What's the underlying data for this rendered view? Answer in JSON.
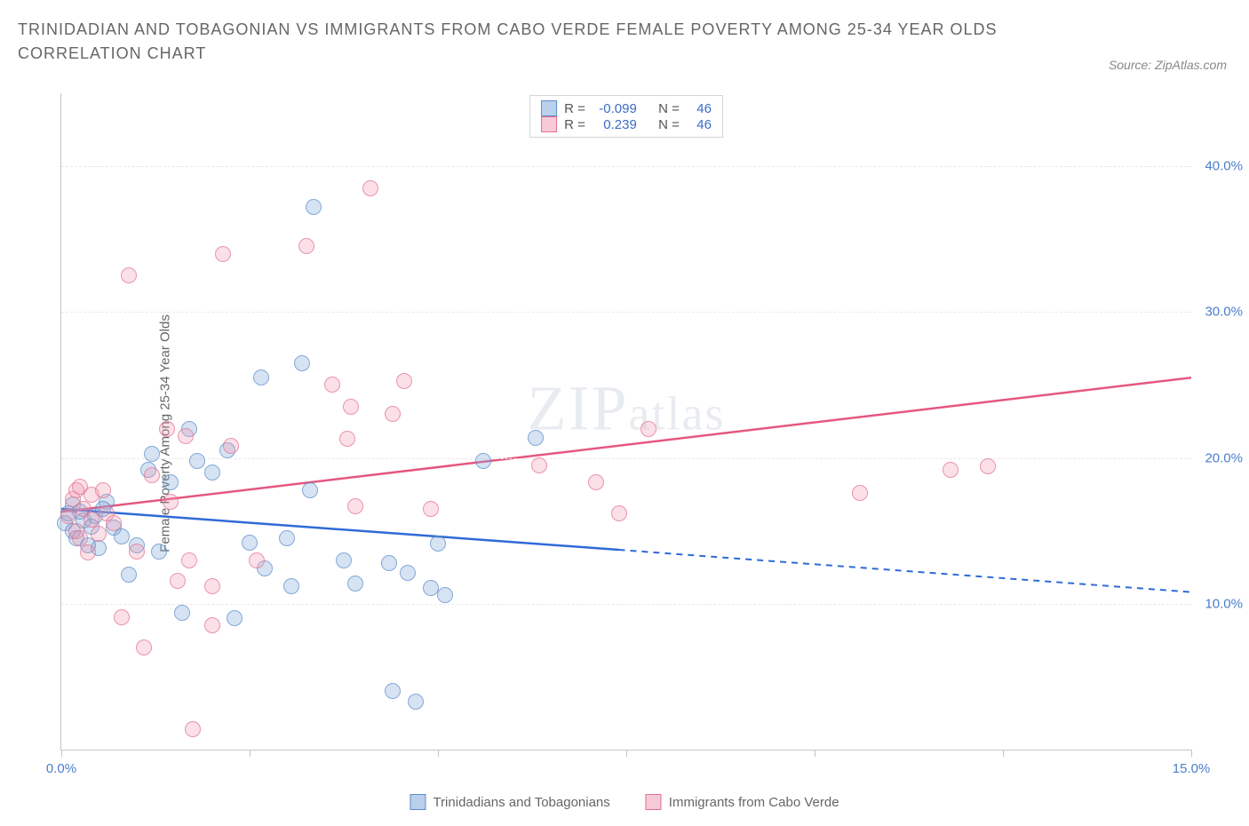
{
  "title": "TRINIDADIAN AND TOBAGONIAN VS IMMIGRANTS FROM CABO VERDE FEMALE POVERTY AMONG 25-34 YEAR OLDS CORRELATION CHART",
  "source": "Source: ZipAtlas.com",
  "ylabel": "Female Poverty Among 25-34 Year Olds",
  "watermark_main": "ZIP",
  "watermark_sub": "atlas",
  "chart": {
    "type": "scatter",
    "background_color": "#ffffff",
    "grid_color": "#e9e9e9",
    "axis_color": "#c6c6c6",
    "tick_label_color": "#4a7ec9",
    "xlim": [
      0,
      15
    ],
    "ylim": [
      0,
      45
    ],
    "xticks": [
      0,
      2.5,
      5,
      7.5,
      10,
      12.5,
      15
    ],
    "xtick_labels": {
      "0": "0.0%",
      "15": "15.0%"
    },
    "yticks": [
      10,
      20,
      30,
      40
    ],
    "ytick_labels": [
      "10.0%",
      "20.0%",
      "30.0%",
      "40.0%"
    ],
    "series": [
      {
        "name": "Trinidadians and Tobagonians",
        "marker_fill": "rgba(130,170,220,0.45)",
        "marker_stroke": "#5a8cc9",
        "line_color": "#2e6bd6",
        "marker_class": "blue",
        "r": "-0.099",
        "n": "46",
        "trend": {
          "x1": 0,
          "y1": 16.5,
          "x2_solid": 7.4,
          "y2_solid": 13.7,
          "x2": 15,
          "y2": 10.8
        },
        "data": [
          [
            0.05,
            15.5
          ],
          [
            0.1,
            16.2
          ],
          [
            0.15,
            15.0
          ],
          [
            0.15,
            16.8
          ],
          [
            0.2,
            14.5
          ],
          [
            1.15,
            19.2
          ],
          [
            1.0,
            14.0
          ],
          [
            1.3,
            13.6
          ],
          [
            1.2,
            20.3
          ],
          [
            0.9,
            12.0
          ],
          [
            1.7,
            22.0
          ],
          [
            1.8,
            19.8
          ],
          [
            1.6,
            9.4
          ],
          [
            2.2,
            20.5
          ],
          [
            2.3,
            9.0
          ],
          [
            2.65,
            25.5
          ],
          [
            2.5,
            14.2
          ],
          [
            2.7,
            12.4
          ],
          [
            3.35,
            37.2
          ],
          [
            3.2,
            26.5
          ],
          [
            3.3,
            17.8
          ],
          [
            3.05,
            11.2
          ],
          [
            3.0,
            14.5
          ],
          [
            3.9,
            11.4
          ],
          [
            3.75,
            13.0
          ],
          [
            4.35,
            12.8
          ],
          [
            4.4,
            4.0
          ],
          [
            4.6,
            12.1
          ],
          [
            4.7,
            3.3
          ],
          [
            4.9,
            11.1
          ],
          [
            5.1,
            10.6
          ],
          [
            5.0,
            14.1
          ],
          [
            5.6,
            19.8
          ],
          [
            6.3,
            21.4
          ],
          [
            0.6,
            17.0
          ],
          [
            0.7,
            15.2
          ],
          [
            0.45,
            16.0
          ],
          [
            0.5,
            13.8
          ],
          [
            2.0,
            19.0
          ],
          [
            1.45,
            18.3
          ],
          [
            0.8,
            14.6
          ],
          [
            0.3,
            15.7
          ],
          [
            0.35,
            14.0
          ],
          [
            0.55,
            16.5
          ],
          [
            0.25,
            16.3
          ],
          [
            0.4,
            15.3
          ]
        ]
      },
      {
        "name": "Immigrants from Cabo Verde",
        "marker_fill": "rgba(240,150,175,0.40)",
        "marker_stroke": "#e4708f",
        "line_color": "#e55780",
        "marker_class": "pink",
        "r": "0.239",
        "n": "46",
        "trend": {
          "x1": 0,
          "y1": 16.3,
          "x2_solid": 15,
          "y2_solid": 25.5,
          "x2": 15,
          "y2": 25.5
        },
        "data": [
          [
            0.1,
            16.0
          ],
          [
            0.15,
            17.2
          ],
          [
            0.2,
            17.8
          ],
          [
            0.2,
            15.0
          ],
          [
            0.25,
            14.5
          ],
          [
            0.25,
            18.0
          ],
          [
            0.3,
            16.5
          ],
          [
            0.35,
            13.5
          ],
          [
            0.4,
            15.8
          ],
          [
            0.4,
            17.5
          ],
          [
            0.8,
            9.1
          ],
          [
            0.9,
            32.5
          ],
          [
            1.0,
            13.6
          ],
          [
            1.4,
            22.0
          ],
          [
            1.45,
            17.0
          ],
          [
            1.55,
            11.6
          ],
          [
            1.65,
            21.5
          ],
          [
            1.7,
            13.0
          ],
          [
            1.75,
            1.4
          ],
          [
            2.15,
            34.0
          ],
          [
            2.25,
            20.8
          ],
          [
            2.0,
            8.5
          ],
          [
            2.0,
            11.2
          ],
          [
            3.25,
            34.5
          ],
          [
            3.6,
            25.0
          ],
          [
            3.8,
            21.3
          ],
          [
            3.85,
            23.5
          ],
          [
            3.9,
            16.7
          ],
          [
            4.1,
            38.5
          ],
          [
            4.4,
            23.0
          ],
          [
            4.55,
            25.3
          ],
          [
            4.9,
            16.5
          ],
          [
            6.35,
            19.5
          ],
          [
            7.1,
            18.3
          ],
          [
            7.4,
            16.2
          ],
          [
            7.8,
            22.0
          ],
          [
            10.6,
            17.6
          ],
          [
            11.8,
            19.2
          ],
          [
            12.3,
            19.4
          ],
          [
            0.55,
            17.8
          ],
          [
            0.6,
            16.2
          ],
          [
            1.2,
            18.8
          ],
          [
            0.5,
            14.8
          ],
          [
            0.7,
            15.5
          ],
          [
            1.1,
            7.0
          ],
          [
            2.6,
            13.0
          ]
        ]
      }
    ]
  },
  "stats_labels": {
    "r": "R =",
    "n": "N ="
  }
}
